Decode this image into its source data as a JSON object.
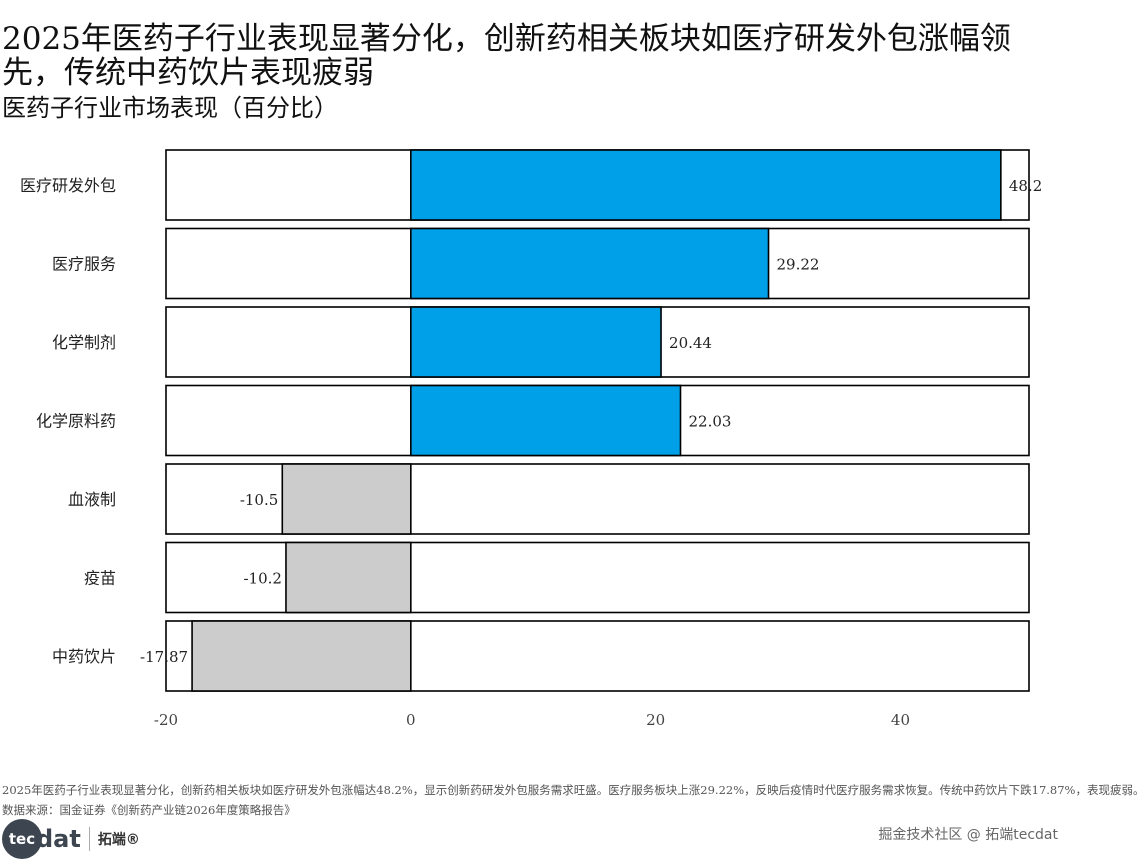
{
  "header": {
    "title": "2025年医药子行业表现显著分化，创新药相关板块如医疗研发外包涨幅领先，传统中药饮片表现疲弱",
    "subtitle": "医药子行业市场表现（百分比）"
  },
  "chart_data": {
    "type": "bar",
    "orientation": "horizontal",
    "title": "医药子行业市场表现（百分比）",
    "categories": [
      "医疗研发外包",
      "医疗服务",
      "化学制剂",
      "化学原料药",
      "血液制",
      "疫苗",
      "中药饮片"
    ],
    "values": [
      48.2,
      29.22,
      20.44,
      22.03,
      -10.5,
      -10.2,
      -17.87
    ],
    "value_labels": [
      "48.2",
      "29.22",
      "20.44",
      "22.03",
      "-10.5",
      "-10.2",
      "-17.87"
    ],
    "xlim": [
      -20,
      50.5
    ],
    "xticks": [
      -20,
      0,
      20,
      40
    ],
    "xtick_labels": [
      "-20",
      "0",
      "20",
      "40"
    ],
    "xlabel": "",
    "ylabel": "",
    "colors": {
      "positive": "#00a0e9",
      "negative": "#cccccc",
      "frame": "#000000"
    }
  },
  "footer": {
    "note": "2025年医药子行业表现显著分化，创新药相关板块如医疗研发外包涨幅达48.2%，显示创新药研发外包服务需求旺盛。医疗服务板块上涨29.22%，反映后疫情时代医疗服务需求恢复。传统中药饮片下跌17.87%，表现疲弱。",
    "source": "数据来源：国金证券《创新药产业链2026年度策略报告》",
    "logo_main": "tec",
    "logo_rest": "dat",
    "logo_cn": "拓端®",
    "watermark": "掘金技术社区 @ 拓端tecdat"
  }
}
